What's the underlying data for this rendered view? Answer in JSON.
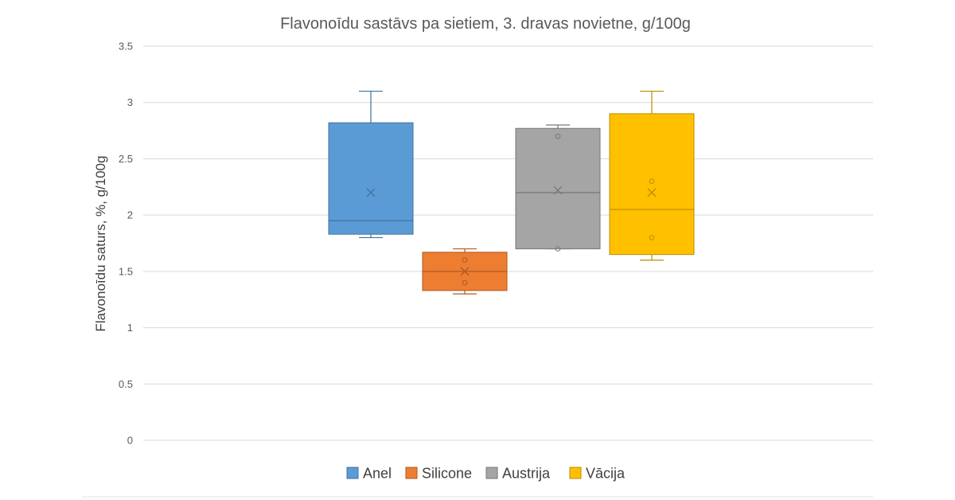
{
  "chart_data": {
    "type": "box",
    "title": "Flavonoīdu sastāvs pa sietiem, 3. dravas novietne, g/100g",
    "xlabel": "",
    "ylabel": "Flavonoīdu saturs, %, g/100g",
    "ylim": [
      0,
      3.5
    ],
    "yticks": [
      0,
      0.5,
      1,
      1.5,
      2,
      2.5,
      3,
      3.5
    ],
    "ytick_labels": [
      "0",
      "0.5",
      "1",
      "1.5",
      "2",
      "2.5",
      "3",
      "3.5"
    ],
    "grid": true,
    "legend_position": "bottom",
    "series": [
      {
        "name": "Anel",
        "color": "#5b9bd5",
        "edge": "#41719c",
        "min": 1.8,
        "q1": 1.83,
        "median": 1.95,
        "q3": 2.82,
        "max": 3.1,
        "mean": 2.2,
        "points": []
      },
      {
        "name": "Silicone",
        "color": "#ed7d31",
        "edge": "#ae5a21",
        "min": 1.3,
        "q1": 1.33,
        "median": 1.5,
        "q3": 1.67,
        "max": 1.7,
        "mean": 1.5,
        "points": [
          1.6,
          1.4
        ]
      },
      {
        "name": "Austrija",
        "color": "#a5a5a5",
        "edge": "#787878",
        "min": 1.7,
        "q1": 1.7,
        "median": 2.2,
        "q3": 2.77,
        "max": 2.8,
        "mean": 2.22,
        "points": [
          2.7,
          1.7
        ]
      },
      {
        "name": "Vācija",
        "color": "#ffc000",
        "edge": "#bc8c00",
        "min": 1.6,
        "q1": 1.65,
        "median": 2.05,
        "q3": 2.9,
        "max": 3.1,
        "mean": 2.2,
        "points": [
          2.3,
          1.8
        ]
      }
    ]
  }
}
